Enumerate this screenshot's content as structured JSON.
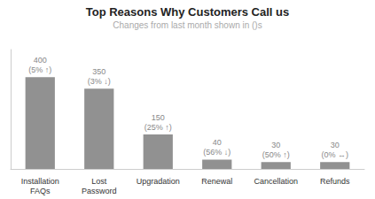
{
  "chart_data": {
    "type": "bar",
    "title": "Top Reasons Why Customers Call us",
    "subtitle": "Changes from last month shown in ()s",
    "categories": [
      "Installation\nFAQs",
      "Lost\nPassword",
      "Upgradation",
      "Renewal",
      "Cancellation",
      "Refunds"
    ],
    "values": [
      400,
      350,
      150,
      40,
      30,
      30
    ],
    "value_labels": [
      "400\n(5% ↑)",
      "350\n(3% ↓)",
      "150\n(25% ↑)",
      "40\n(56% ↓)",
      "30\n(50% ↑)",
      "30\n(0% ↔)"
    ],
    "data_labels": true,
    "color": "#919191",
    "ylim": [
      0,
      520
    ],
    "grid": false,
    "tick_labels": "x"
  }
}
